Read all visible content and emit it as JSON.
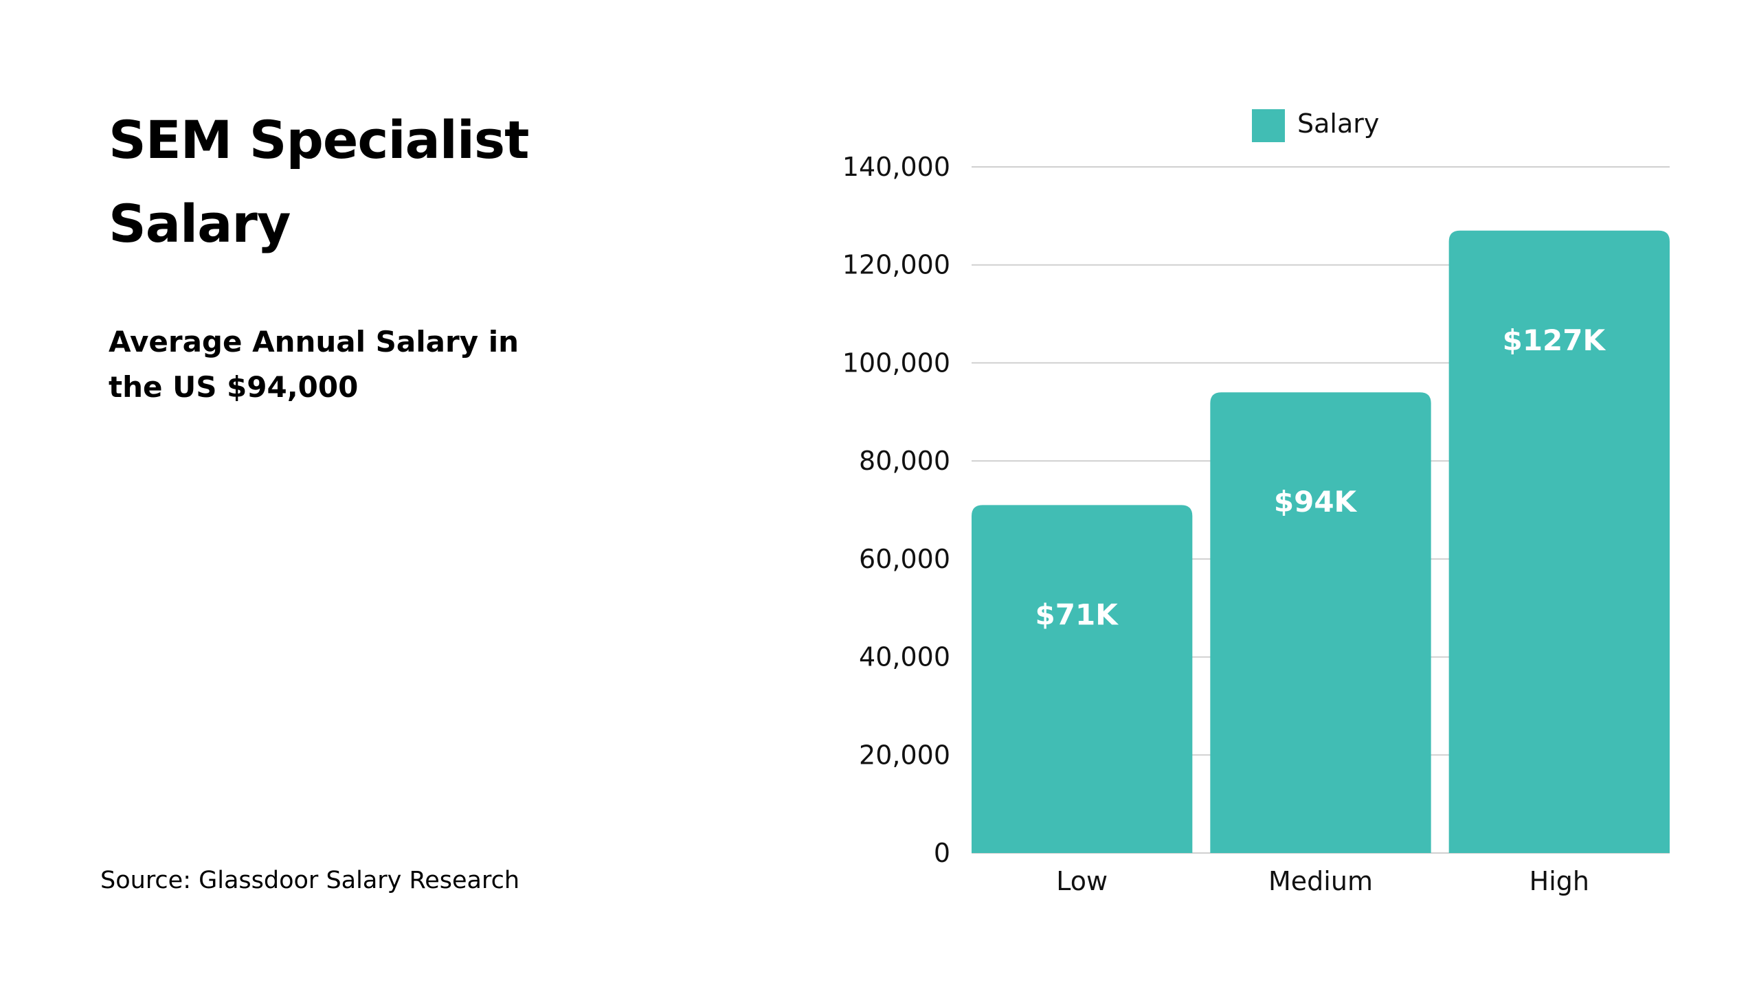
{
  "heading": {
    "title": "SEM Specialist Salary",
    "subtitle": "Average Annual Salary in the US $94,000",
    "source": "Source: Glassdoor Salary Research"
  },
  "colors": {
    "bar": "#41BDB4",
    "grid": "#D0D0D0",
    "text": "#111111"
  },
  "chart_data": {
    "type": "bar",
    "categories": [
      "Low",
      "Medium",
      "High"
    ],
    "series": [
      {
        "name": "Salary",
        "values": [
          71000,
          94000,
          127000
        ]
      }
    ],
    "data_labels": [
      "$71K",
      "$94K",
      "$127K"
    ],
    "y_ticks": [
      0,
      20000,
      40000,
      60000,
      80000,
      100000,
      120000,
      140000
    ],
    "y_tick_labels": [
      "0",
      "20,000",
      "40,000",
      "60,000",
      "80,000",
      "100,000",
      "120,000",
      "140,000"
    ],
    "ylim": [
      0,
      140000
    ],
    "grid": true,
    "legend": "top",
    "xlabel": "",
    "ylabel": ""
  }
}
